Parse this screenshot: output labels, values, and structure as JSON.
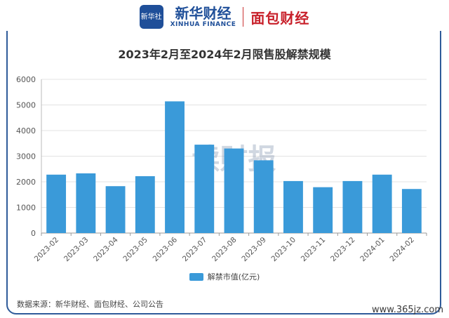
{
  "header": {
    "xinhua_badge": "新华社",
    "xinhua_cn": "新华财经",
    "xinhua_en": "XINHUA FINANCE",
    "mianbao": "面包财经"
  },
  "footer": {
    "source": "数据来源：新华财经、面包财经、公司公告",
    "site": "www.365jz.com"
  },
  "colors": {
    "bar": "#3a9ad9",
    "frame": "#2f5b9a"
  },
  "chart_data": {
    "type": "bar",
    "title": "2023年2月至2024年2月限售股解禁规模",
    "watermark": "读财报",
    "categories": [
      "2023-02",
      "2023-03",
      "2023-04",
      "2023-05",
      "2023-06",
      "2023-07",
      "2023-08",
      "2023-09",
      "2023-10",
      "2023-11",
      "2023-12",
      "2024-01",
      "2024-02"
    ],
    "series": [
      {
        "name": "解禁市值(亿元)",
        "values": [
          2280,
          2330,
          1830,
          2220,
          5140,
          3450,
          3300,
          2840,
          2030,
          1790,
          2030,
          2280,
          1720
        ]
      }
    ],
    "ylim": [
      0,
      6000
    ],
    "yticks": [
      0,
      1000,
      2000,
      3000,
      4000,
      5000,
      6000
    ],
    "xlabel": "",
    "ylabel": "",
    "grid": true,
    "legend_position": "bottom"
  }
}
